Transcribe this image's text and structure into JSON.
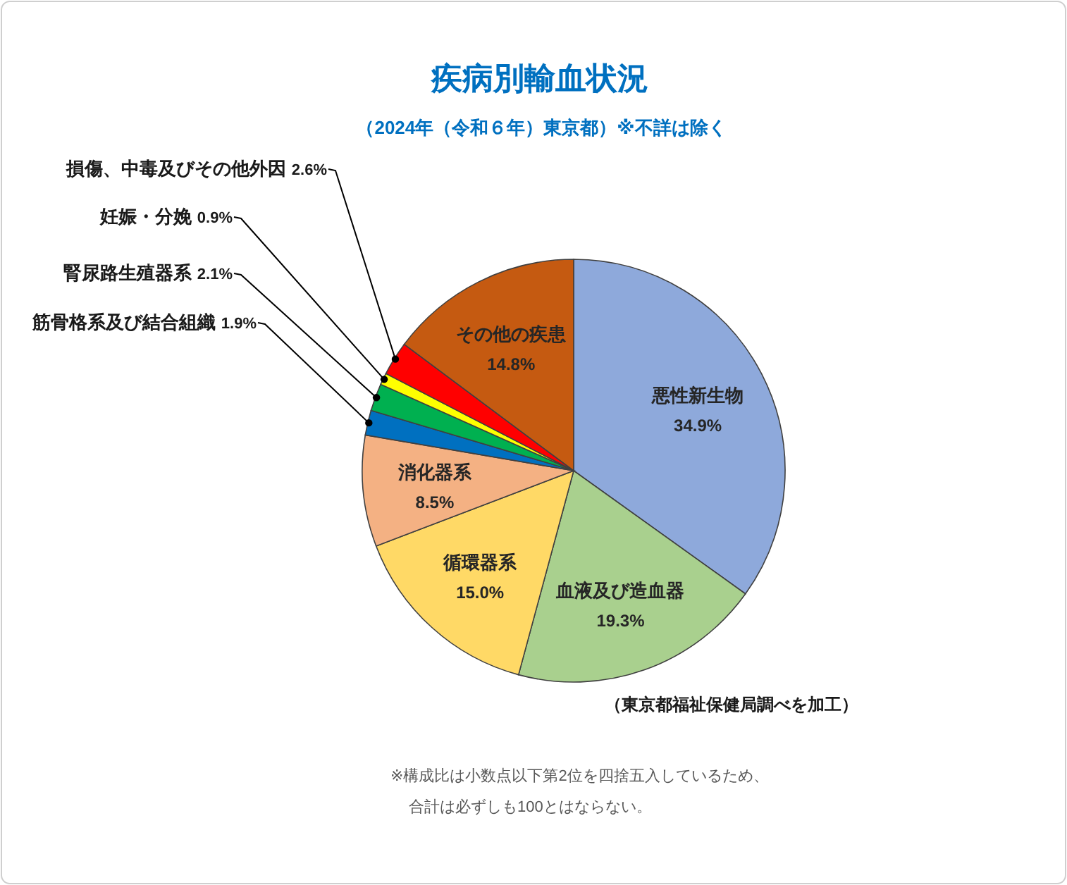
{
  "chart_data": {
    "type": "pie",
    "title": "疾病別輸血状況",
    "subtitle": "（2024年（令和６年）東京都）※不詳は除く",
    "categories": [
      "悪性新生物",
      "血液及び造血器",
      "循環器系",
      "消化器系",
      "筋骨格系及び結合組織",
      "腎尿路生殖器系",
      "妊娠・分娩",
      "損傷、中毒及びその他外因",
      "その他の疾患"
    ],
    "values": [
      34.9,
      19.3,
      15.0,
      8.5,
      1.9,
      2.1,
      0.9,
      2.6,
      14.8
    ],
    "colors": [
      "#8ea9db",
      "#a9d08e",
      "#ffd966",
      "#f4b183",
      "#0070c0",
      "#00b050",
      "#ffff00",
      "#ff0000",
      "#c55a11"
    ],
    "value_labels": [
      "34.9%",
      "19.3%",
      "15.0%",
      "8.5%",
      "1.9%",
      "2.1%",
      "0.9%",
      "2.6%",
      "14.8%"
    ],
    "annotations": [
      "（東京都福祉保健局調べを加工）",
      "※構成比は小数点以下第2位を四捨五入しているため、",
      "合計は必ずしも100とはならない。"
    ]
  }
}
